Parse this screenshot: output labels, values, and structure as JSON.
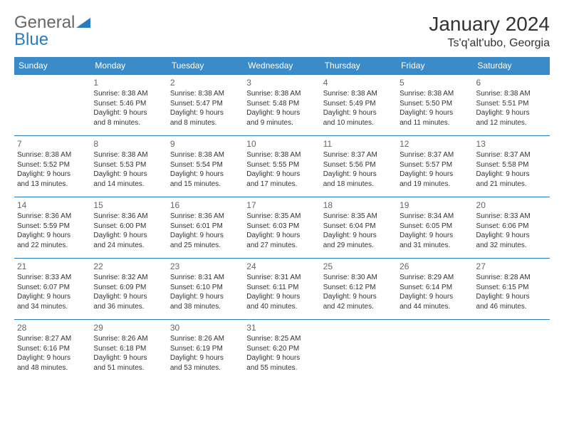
{
  "logo": {
    "text_general": "General",
    "text_blue": "Blue"
  },
  "header": {
    "month_title": "January 2024",
    "location": "Ts'q'alt'ubo, Georgia"
  },
  "colors": {
    "header_bg": "#3b8bc9",
    "header_text": "#ffffff",
    "row_border": "#2b7bbf",
    "body_text": "#333333",
    "daynum_text": "#666666",
    "logo_general": "#666666",
    "logo_blue": "#2b7bbf",
    "background": "#ffffff"
  },
  "typography": {
    "month_title_fontsize": 28,
    "location_fontsize": 16,
    "dayheader_fontsize": 12,
    "daynum_fontsize": 12,
    "cell_fontsize": 10,
    "font_family": "Arial"
  },
  "day_headers": [
    "Sunday",
    "Monday",
    "Tuesday",
    "Wednesday",
    "Thursday",
    "Friday",
    "Saturday"
  ],
  "weeks": [
    [
      null,
      {
        "n": "1",
        "sr": "Sunrise: 8:38 AM",
        "ss": "Sunset: 5:46 PM",
        "d1": "Daylight: 9 hours",
        "d2": "and 8 minutes."
      },
      {
        "n": "2",
        "sr": "Sunrise: 8:38 AM",
        "ss": "Sunset: 5:47 PM",
        "d1": "Daylight: 9 hours",
        "d2": "and 8 minutes."
      },
      {
        "n": "3",
        "sr": "Sunrise: 8:38 AM",
        "ss": "Sunset: 5:48 PM",
        "d1": "Daylight: 9 hours",
        "d2": "and 9 minutes."
      },
      {
        "n": "4",
        "sr": "Sunrise: 8:38 AM",
        "ss": "Sunset: 5:49 PM",
        "d1": "Daylight: 9 hours",
        "d2": "and 10 minutes."
      },
      {
        "n": "5",
        "sr": "Sunrise: 8:38 AM",
        "ss": "Sunset: 5:50 PM",
        "d1": "Daylight: 9 hours",
        "d2": "and 11 minutes."
      },
      {
        "n": "6",
        "sr": "Sunrise: 8:38 AM",
        "ss": "Sunset: 5:51 PM",
        "d1": "Daylight: 9 hours",
        "d2": "and 12 minutes."
      }
    ],
    [
      {
        "n": "7",
        "sr": "Sunrise: 8:38 AM",
        "ss": "Sunset: 5:52 PM",
        "d1": "Daylight: 9 hours",
        "d2": "and 13 minutes."
      },
      {
        "n": "8",
        "sr": "Sunrise: 8:38 AM",
        "ss": "Sunset: 5:53 PM",
        "d1": "Daylight: 9 hours",
        "d2": "and 14 minutes."
      },
      {
        "n": "9",
        "sr": "Sunrise: 8:38 AM",
        "ss": "Sunset: 5:54 PM",
        "d1": "Daylight: 9 hours",
        "d2": "and 15 minutes."
      },
      {
        "n": "10",
        "sr": "Sunrise: 8:38 AM",
        "ss": "Sunset: 5:55 PM",
        "d1": "Daylight: 9 hours",
        "d2": "and 17 minutes."
      },
      {
        "n": "11",
        "sr": "Sunrise: 8:37 AM",
        "ss": "Sunset: 5:56 PM",
        "d1": "Daylight: 9 hours",
        "d2": "and 18 minutes."
      },
      {
        "n": "12",
        "sr": "Sunrise: 8:37 AM",
        "ss": "Sunset: 5:57 PM",
        "d1": "Daylight: 9 hours",
        "d2": "and 19 minutes."
      },
      {
        "n": "13",
        "sr": "Sunrise: 8:37 AM",
        "ss": "Sunset: 5:58 PM",
        "d1": "Daylight: 9 hours",
        "d2": "and 21 minutes."
      }
    ],
    [
      {
        "n": "14",
        "sr": "Sunrise: 8:36 AM",
        "ss": "Sunset: 5:59 PM",
        "d1": "Daylight: 9 hours",
        "d2": "and 22 minutes."
      },
      {
        "n": "15",
        "sr": "Sunrise: 8:36 AM",
        "ss": "Sunset: 6:00 PM",
        "d1": "Daylight: 9 hours",
        "d2": "and 24 minutes."
      },
      {
        "n": "16",
        "sr": "Sunrise: 8:36 AM",
        "ss": "Sunset: 6:01 PM",
        "d1": "Daylight: 9 hours",
        "d2": "and 25 minutes."
      },
      {
        "n": "17",
        "sr": "Sunrise: 8:35 AM",
        "ss": "Sunset: 6:03 PM",
        "d1": "Daylight: 9 hours",
        "d2": "and 27 minutes."
      },
      {
        "n": "18",
        "sr": "Sunrise: 8:35 AM",
        "ss": "Sunset: 6:04 PM",
        "d1": "Daylight: 9 hours",
        "d2": "and 29 minutes."
      },
      {
        "n": "19",
        "sr": "Sunrise: 8:34 AM",
        "ss": "Sunset: 6:05 PM",
        "d1": "Daylight: 9 hours",
        "d2": "and 31 minutes."
      },
      {
        "n": "20",
        "sr": "Sunrise: 8:33 AM",
        "ss": "Sunset: 6:06 PM",
        "d1": "Daylight: 9 hours",
        "d2": "and 32 minutes."
      }
    ],
    [
      {
        "n": "21",
        "sr": "Sunrise: 8:33 AM",
        "ss": "Sunset: 6:07 PM",
        "d1": "Daylight: 9 hours",
        "d2": "and 34 minutes."
      },
      {
        "n": "22",
        "sr": "Sunrise: 8:32 AM",
        "ss": "Sunset: 6:09 PM",
        "d1": "Daylight: 9 hours",
        "d2": "and 36 minutes."
      },
      {
        "n": "23",
        "sr": "Sunrise: 8:31 AM",
        "ss": "Sunset: 6:10 PM",
        "d1": "Daylight: 9 hours",
        "d2": "and 38 minutes."
      },
      {
        "n": "24",
        "sr": "Sunrise: 8:31 AM",
        "ss": "Sunset: 6:11 PM",
        "d1": "Daylight: 9 hours",
        "d2": "and 40 minutes."
      },
      {
        "n": "25",
        "sr": "Sunrise: 8:30 AM",
        "ss": "Sunset: 6:12 PM",
        "d1": "Daylight: 9 hours",
        "d2": "and 42 minutes."
      },
      {
        "n": "26",
        "sr": "Sunrise: 8:29 AM",
        "ss": "Sunset: 6:14 PM",
        "d1": "Daylight: 9 hours",
        "d2": "and 44 minutes."
      },
      {
        "n": "27",
        "sr": "Sunrise: 8:28 AM",
        "ss": "Sunset: 6:15 PM",
        "d1": "Daylight: 9 hours",
        "d2": "and 46 minutes."
      }
    ],
    [
      {
        "n": "28",
        "sr": "Sunrise: 8:27 AM",
        "ss": "Sunset: 6:16 PM",
        "d1": "Daylight: 9 hours",
        "d2": "and 48 minutes."
      },
      {
        "n": "29",
        "sr": "Sunrise: 8:26 AM",
        "ss": "Sunset: 6:18 PM",
        "d1": "Daylight: 9 hours",
        "d2": "and 51 minutes."
      },
      {
        "n": "30",
        "sr": "Sunrise: 8:26 AM",
        "ss": "Sunset: 6:19 PM",
        "d1": "Daylight: 9 hours",
        "d2": "and 53 minutes."
      },
      {
        "n": "31",
        "sr": "Sunrise: 8:25 AM",
        "ss": "Sunset: 6:20 PM",
        "d1": "Daylight: 9 hours",
        "d2": "and 55 minutes."
      },
      null,
      null,
      null
    ]
  ]
}
